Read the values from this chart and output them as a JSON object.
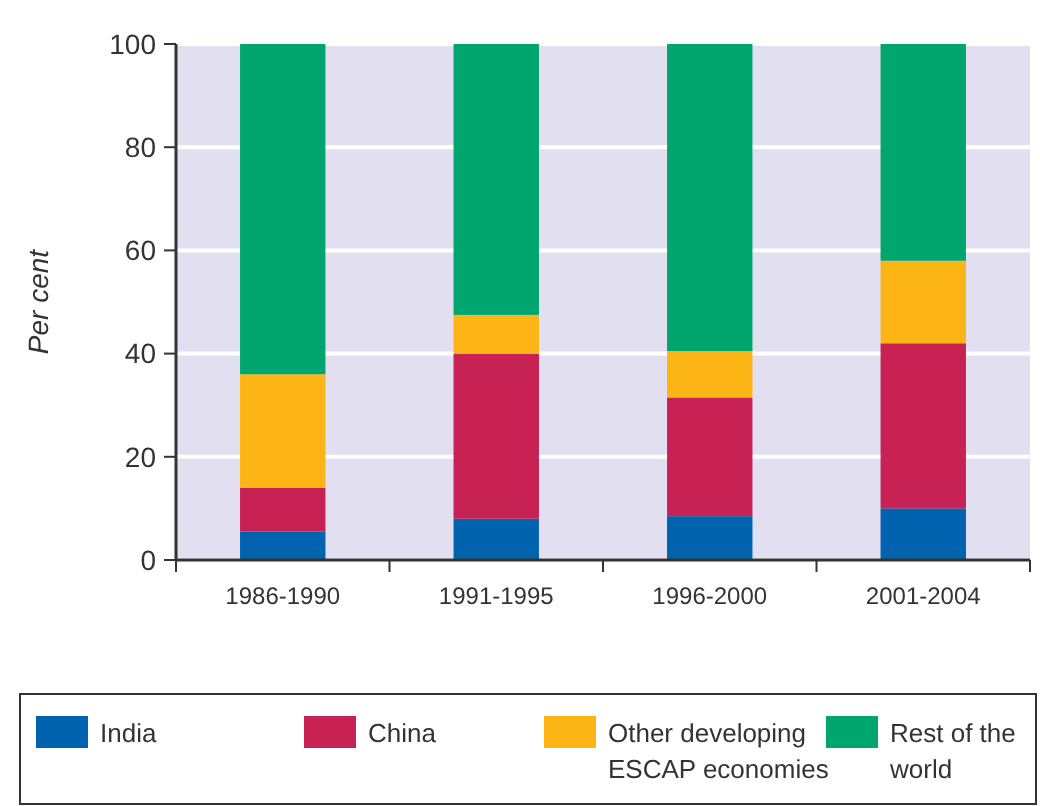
{
  "chart_data": {
    "type": "bar",
    "stacked": true,
    "ylabel": "Per cent",
    "categories": [
      "1986-1990",
      "1991-1995",
      "1996-2000",
      "2001-2004"
    ],
    "series": [
      {
        "name": "India",
        "color": "#0063b0",
        "values": [
          5.5,
          8,
          8.5,
          10
        ]
      },
      {
        "name": "China",
        "color": "#c72253",
        "values": [
          8.5,
          32,
          23,
          32
        ]
      },
      {
        "name": "Other developing ESCAP economies",
        "color": "#fcb515",
        "values": [
          22,
          7.5,
          9,
          16
        ]
      },
      {
        "name": "Rest of the world",
        "color": "#00a66d",
        "values": [
          64,
          52.5,
          59.5,
          42
        ]
      }
    ],
    "ylim": [
      0,
      100
    ],
    "yticks": [
      0,
      20,
      40,
      60,
      80,
      100
    ],
    "grid": "y",
    "legend": "bottom"
  }
}
